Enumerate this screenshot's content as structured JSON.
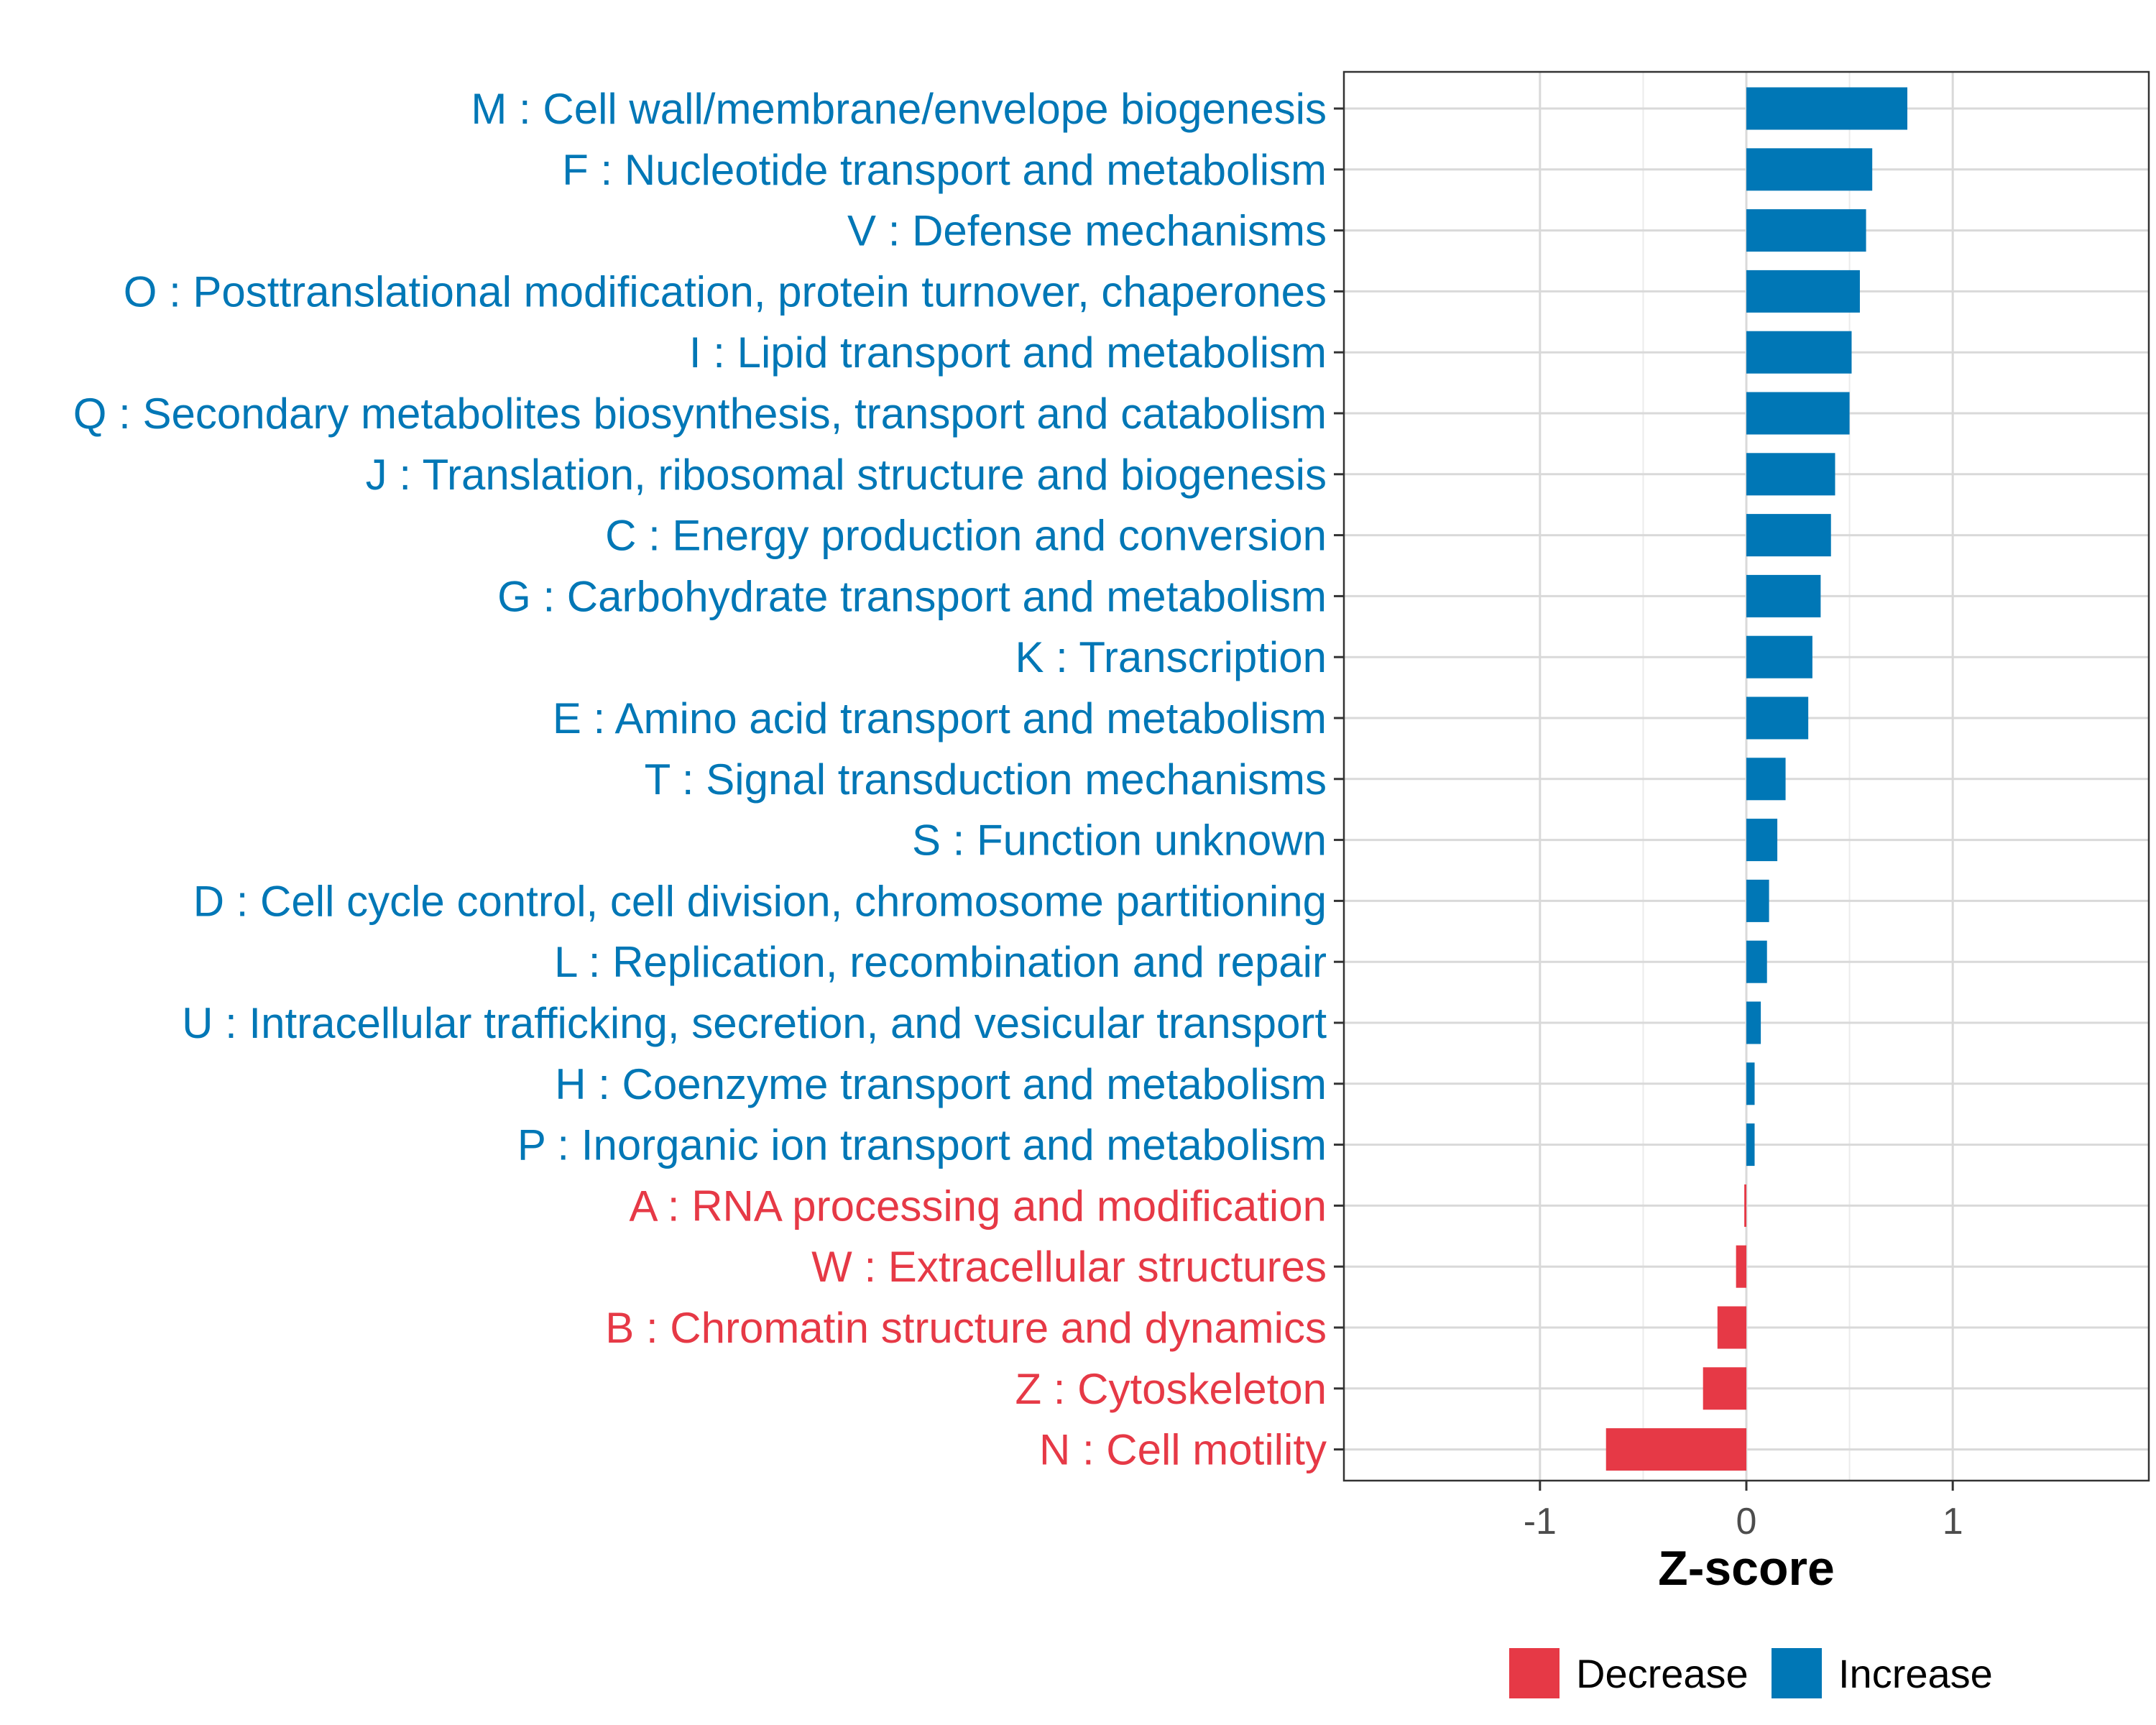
{
  "chart_data": {
    "type": "bar",
    "orientation": "horizontal",
    "title": "",
    "xlabel": "Z-score",
    "ylabel": "",
    "xlim": [
      -1.95,
      1.95
    ],
    "xticks": [
      -1,
      0,
      1
    ],
    "xtick_labels": [
      "-1",
      "0",
      "1"
    ],
    "grid": true,
    "legend_position": "bottom",
    "legend": [
      {
        "name": "Decrease",
        "color": "#E63946"
      },
      {
        "name": "Increase",
        "color": "#0077B6"
      }
    ],
    "categories": [
      "M : Cell wall/membrane/envelope biogenesis",
      "F : Nucleotide transport and metabolism",
      "V : Defense mechanisms",
      "O : Posttranslational modification, protein turnover, chaperones",
      "I : Lipid transport and metabolism",
      "Q : Secondary metabolites biosynthesis, transport and catabolism",
      "J : Translation, ribosomal structure and biogenesis",
      "C : Energy production and conversion",
      "G : Carbohydrate transport and metabolism",
      "K : Transcription",
      "E : Amino acid transport and metabolism",
      "T : Signal transduction mechanisms",
      "S : Function unknown",
      "D : Cell cycle control, cell division, chromosome partitioning",
      "L : Replication, recombination and repair",
      "U : Intracellular trafficking, secretion, and vesicular transport",
      "H : Coenzyme transport and metabolism",
      "P : Inorganic ion transport and metabolism",
      "A : RNA processing and modification",
      "W : Extracellular structures",
      "B : Chromatin structure and dynamics",
      "Z : Cytoskeleton",
      "N : Cell motility"
    ],
    "values": [
      0.78,
      0.61,
      0.58,
      0.55,
      0.51,
      0.5,
      0.43,
      0.41,
      0.36,
      0.32,
      0.3,
      0.19,
      0.15,
      0.11,
      0.1,
      0.07,
      0.04,
      0.04,
      -0.01,
      -0.05,
      -0.14,
      -0.21,
      -0.68
    ],
    "groups": [
      "Increase",
      "Increase",
      "Increase",
      "Increase",
      "Increase",
      "Increase",
      "Increase",
      "Increase",
      "Increase",
      "Increase",
      "Increase",
      "Increase",
      "Increase",
      "Increase",
      "Increase",
      "Increase",
      "Increase",
      "Increase",
      "Decrease",
      "Decrease",
      "Decrease",
      "Decrease",
      "Decrease"
    ]
  }
}
